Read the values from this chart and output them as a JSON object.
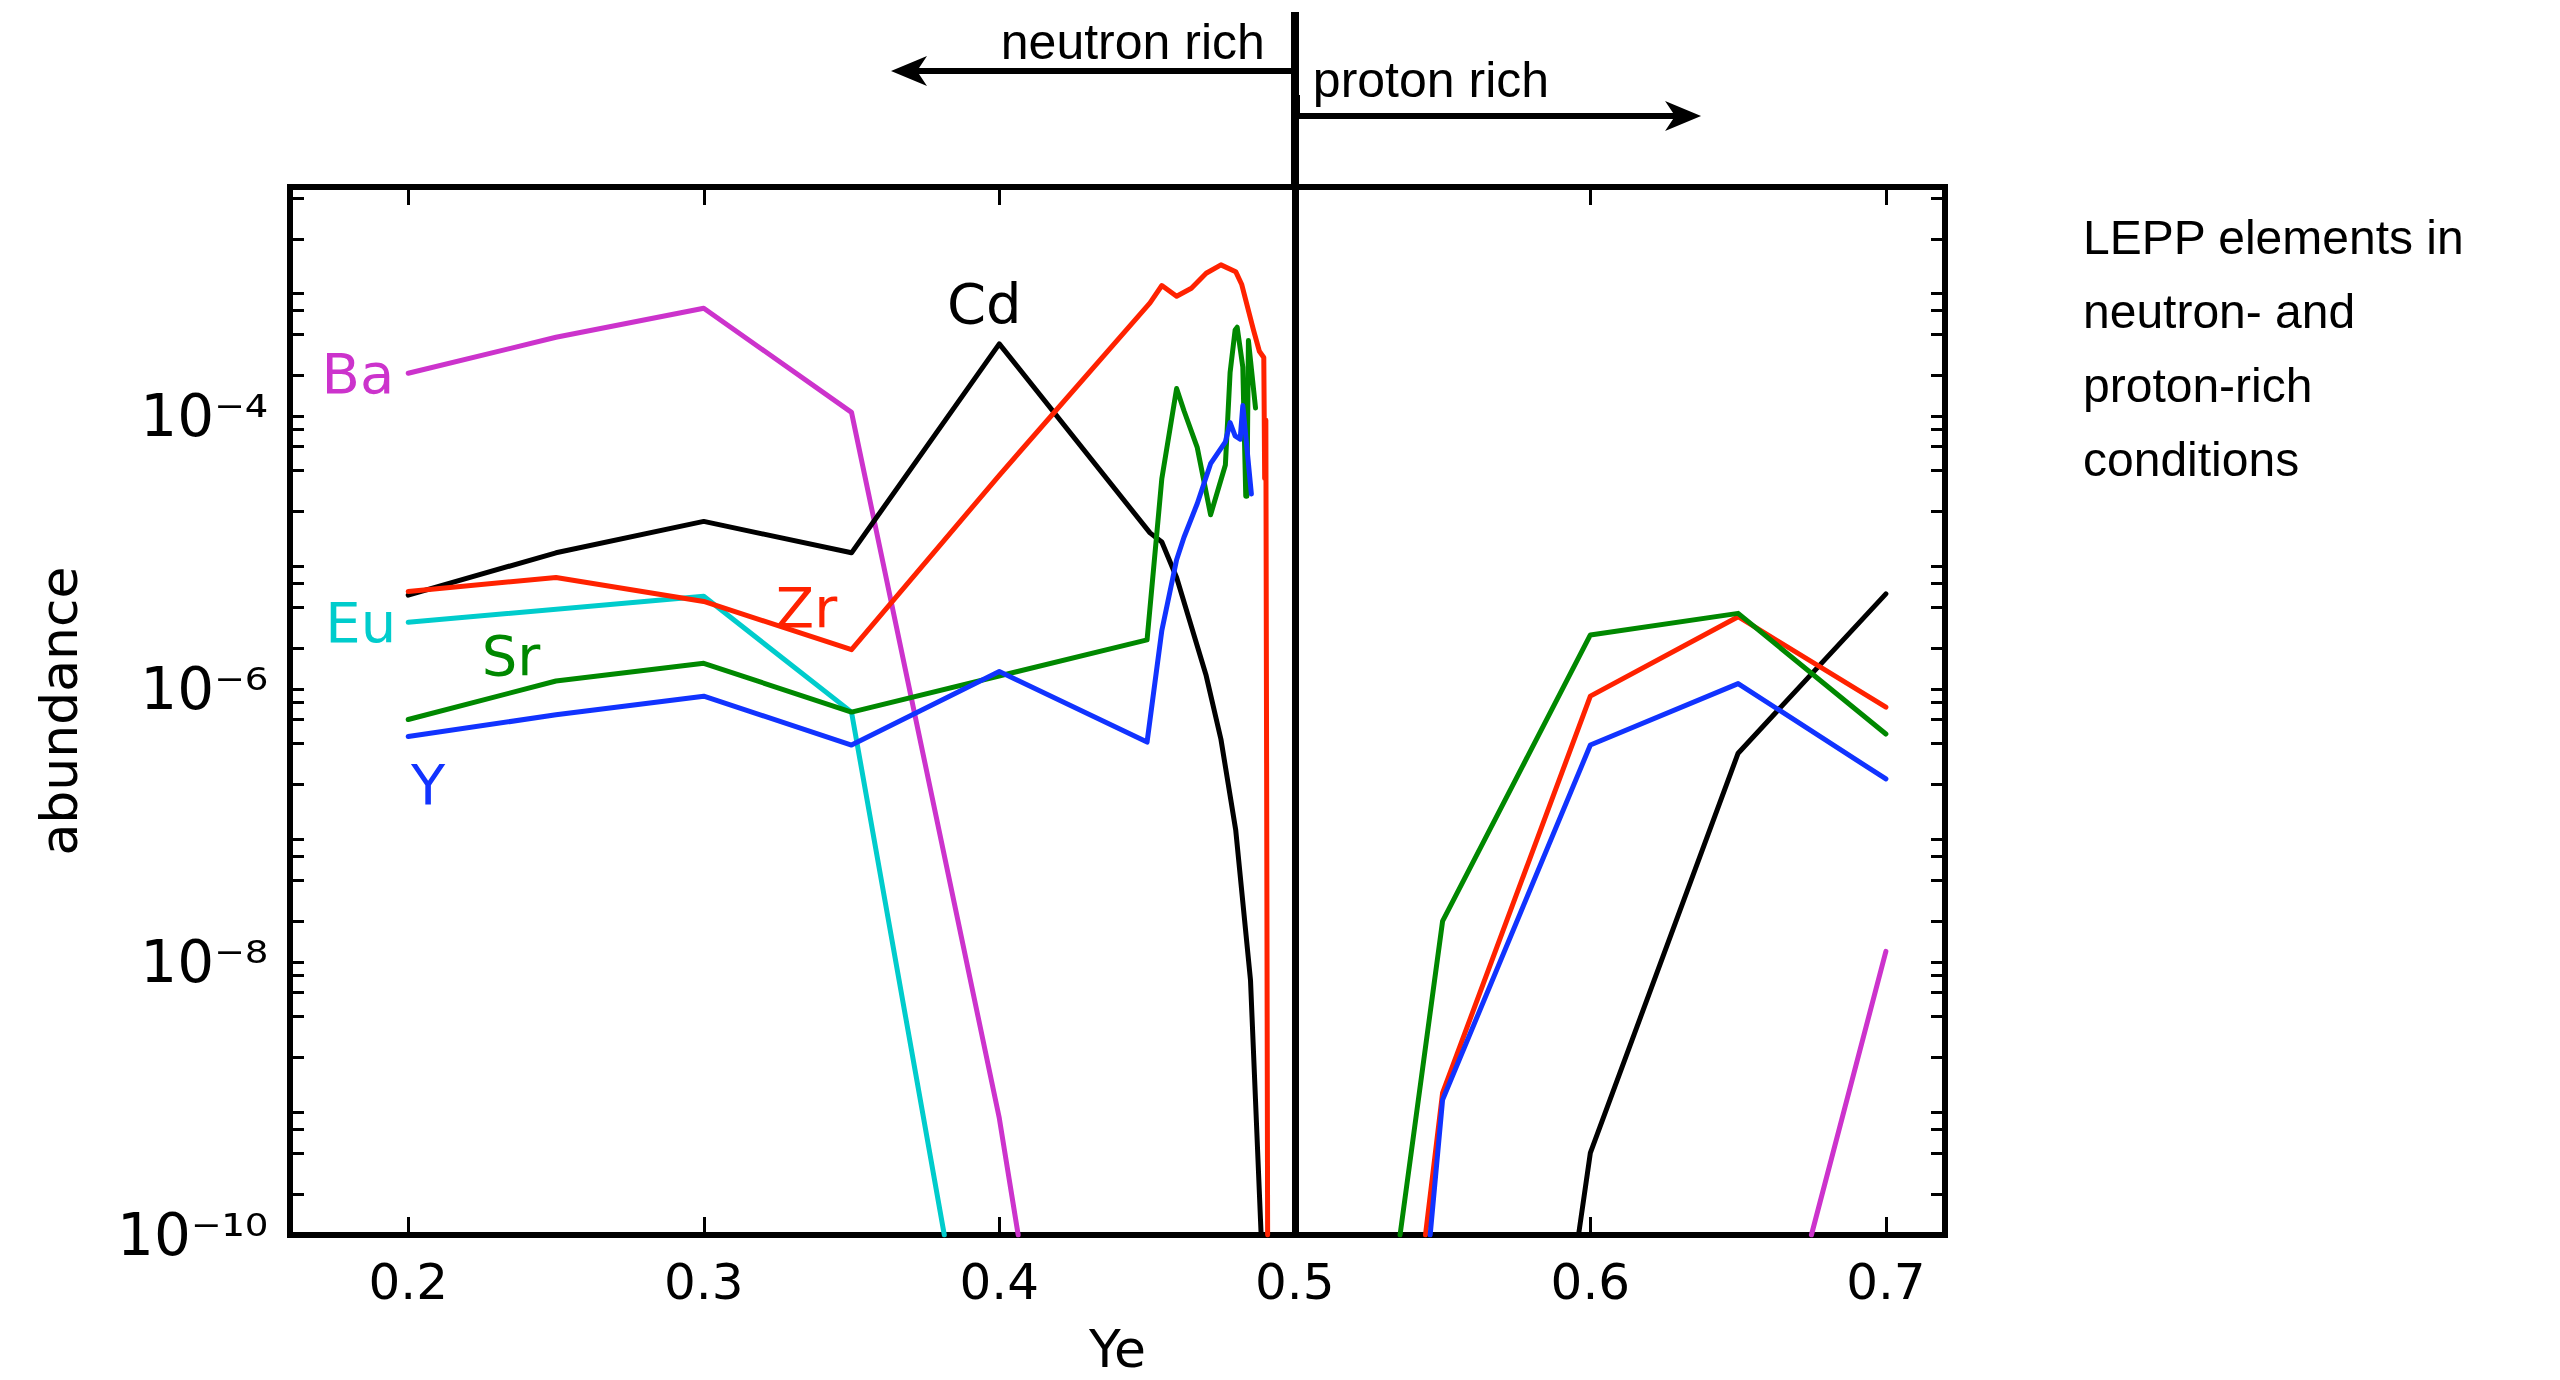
{
  "chart_data": {
    "type": "line",
    "xlabel": "Ye",
    "ylabel": "abundance",
    "log": "y",
    "grid": false,
    "marker": "none",
    "line_style": "solid",
    "xlim": [
      0.16,
      0.72
    ],
    "xticks": [
      0.2,
      0.3,
      0.4,
      0.5,
      0.6,
      0.7
    ],
    "ylim": [
      1e-10,
      0.0048
    ],
    "yticks": [
      {
        "value": 1e-10,
        "label": "10⁻¹⁰"
      },
      {
        "value": 2e-10,
        "label": null
      },
      {
        "value": 4e-10,
        "label": null
      },
      {
        "value": 6e-10,
        "label": null
      },
      {
        "value": 8e-10,
        "label": null
      },
      {
        "value": 2e-09,
        "label": null
      },
      {
        "value": 4e-09,
        "label": null
      },
      {
        "value": 6e-09,
        "label": null
      },
      {
        "value": 8e-09,
        "label": null
      },
      {
        "value": 1e-08,
        "label": "10⁻⁸"
      },
      {
        "value": 2e-08,
        "label": null
      },
      {
        "value": 4e-08,
        "label": null
      },
      {
        "value": 6e-08,
        "label": null
      },
      {
        "value": 8e-08,
        "label": null
      },
      {
        "value": 2e-07,
        "label": null
      },
      {
        "value": 4e-07,
        "label": null
      },
      {
        "value": 6e-07,
        "label": null
      },
      {
        "value": 8e-07,
        "label": null
      },
      {
        "value": 1e-06,
        "label": "10⁻⁶"
      },
      {
        "value": 2e-06,
        "label": null
      },
      {
        "value": 4e-06,
        "label": null
      },
      {
        "value": 6e-06,
        "label": null
      },
      {
        "value": 8e-06,
        "label": null
      },
      {
        "value": 2e-05,
        "label": null
      },
      {
        "value": 4e-05,
        "label": null
      },
      {
        "value": 6e-05,
        "label": null
      },
      {
        "value": 8e-05,
        "label": null
      },
      {
        "value": 0.0001,
        "label": "10⁻⁴"
      },
      {
        "value": 0.0002,
        "label": null
      },
      {
        "value": 0.0004,
        "label": null
      },
      {
        "value": 0.0006,
        "label": null
      },
      {
        "value": 0.0008,
        "label": null
      },
      {
        "value": 0.002,
        "label": null
      },
      {
        "value": 0.004,
        "label": null
      }
    ],
    "ref_lines": [
      {
        "axis": "x",
        "value": 0.5,
        "color": "#000000",
        "line_style": "solid"
      }
    ],
    "annotations": [
      "neutron rich",
      "proton rich",
      "LEPP elements in neutron- and proton-rich conditions"
    ],
    "series": [
      {
        "name": "Ba",
        "color": "#cc33cc",
        "x": [
          0.2,
          0.25,
          0.3,
          0.35,
          0.4,
          0.4064,
          0.55,
          0.6748,
          0.7
        ],
        "values": [
          0.000207,
          0.00038,
          0.00062,
          0.000107,
          7.2e-10,
          1e-10,
          null,
          1e-10,
          1.2e-08
        ]
      },
      {
        "name": "Cd",
        "color": "#000000",
        "x": [
          0.2,
          0.25,
          0.3,
          0.35,
          0.4,
          0.451,
          0.455,
          0.46,
          0.47,
          0.475,
          0.48,
          0.485,
          0.4886,
          0.55,
          0.596,
          0.6,
          0.65,
          0.7
        ],
        "values": [
          4.9e-06,
          1e-05,
          1.7e-05,
          1e-05,
          0.00034,
          1.4e-05,
          1.2e-05,
          6.6e-06,
          1.26e-06,
          4.3e-07,
          9.3e-08,
          7.4e-09,
          1e-10,
          null,
          1e-10,
          4e-10,
          3.4e-07,
          5e-06
        ]
      },
      {
        "name": "Eu",
        "color": "#00cccc",
        "x": [
          0.2,
          0.3,
          0.35,
          0.3814
        ],
        "values": [
          3.1e-06,
          4.8e-06,
          6.8e-07,
          1e-10
        ]
      },
      {
        "name": "Zr",
        "color": "#ff2200",
        "x": [
          0.2,
          0.25,
          0.3,
          0.35,
          0.4,
          0.451,
          0.455,
          0.46,
          0.465,
          0.47,
          0.475,
          0.48,
          0.482,
          0.486,
          0.488,
          0.4895,
          0.4898,
          0.4902,
          0.4908,
          0.52,
          0.5442,
          0.55,
          0.6,
          0.65,
          0.7
        ],
        "values": [
          5.2e-06,
          6.6e-06,
          4.4e-06,
          1.95e-06,
          3.7e-05,
          0.00068,
          0.00091,
          0.00076,
          0.00087,
          0.00112,
          0.00129,
          0.00115,
          0.00093,
          0.00043,
          0.0003,
          0.00027,
          3.5e-05,
          9.4e-05,
          1e-10,
          null,
          1e-10,
          1.1e-09,
          8.9e-07,
          3.4e-06,
          7.4e-07
        ]
      },
      {
        "name": "Sr",
        "color": "#008800",
        "x": [
          0.2,
          0.25,
          0.3,
          0.35,
          0.45,
          0.455,
          0.46,
          0.4625,
          0.467,
          0.4715,
          0.4765,
          0.4781,
          0.4798,
          0.4805,
          0.4824,
          0.4834,
          0.4838,
          0.4843,
          0.4867,
          0.51,
          0.5356,
          0.55,
          0.6,
          0.65,
          0.7
        ],
        "values": [
          6e-07,
          1.15e-06,
          1.55e-06,
          6.8e-07,
          2.3e-06,
          3.5e-05,
          0.00016,
          0.00011,
          5.9e-05,
          1.9e-05,
          4.4e-05,
          0.00021,
          0.00043,
          0.00045,
          0.00023,
          2.6e-05,
          2.6e-05,
          0.00036,
          0.000115,
          null,
          1e-10,
          2e-08,
          2.5e-06,
          3.6e-06,
          4.7e-07
        ]
      },
      {
        "name": "Y",
        "color": "#1133ff",
        "x": [
          0.2,
          0.25,
          0.3,
          0.35,
          0.4,
          0.45,
          0.455,
          0.46,
          0.4625,
          0.467,
          0.4715,
          0.4765,
          0.4781,
          0.4798,
          0.4815,
          0.4824,
          0.4853,
          0.52,
          0.5458,
          0.55,
          0.6,
          0.65,
          0.7
        ],
        "values": [
          4.5e-07,
          6.5e-07,
          8.9e-07,
          3.9e-07,
          1.35e-06,
          4.1e-07,
          2.7e-06,
          8.9e-06,
          1.3e-05,
          2.3e-05,
          4.5e-05,
          6.5e-05,
          9e-05,
          7.2e-05,
          6.8e-05,
          0.00012,
          2.7e-05,
          null,
          1e-10,
          9.8e-10,
          3.9e-07,
          1.1e-06,
          2.2e-07
        ]
      }
    ]
  }
}
